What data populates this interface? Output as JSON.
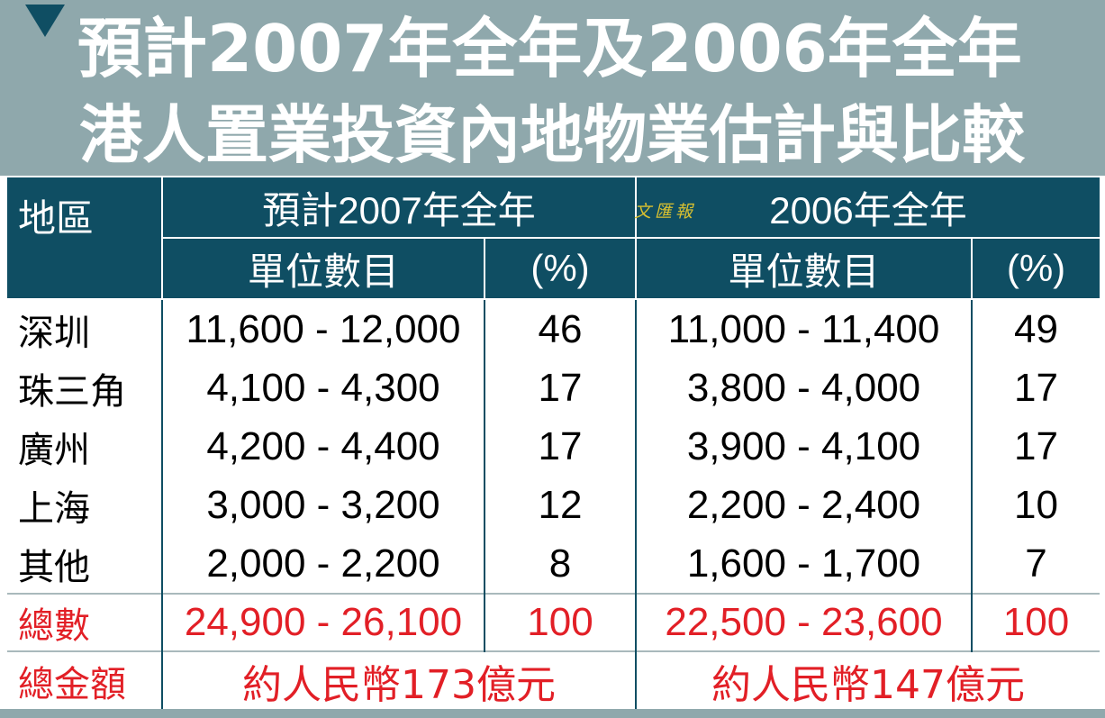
{
  "title": {
    "line1": "預計2007年全年及2006年全年",
    "line2": "港人置業投資內地物業估計與比較"
  },
  "logo_text": "文匯報",
  "colors": {
    "header_bg": "#0f4e63",
    "title_bg": "#8fa8ac",
    "total_text": "#e21f26"
  },
  "headers": {
    "region": "地區",
    "period_2007": "預計2007年全年",
    "period_2006": "2006年全年",
    "units": "單位數目",
    "percent": "(%)"
  },
  "rows": [
    {
      "region": "深圳",
      "units_2007": "11,600 - 12,000",
      "pct_2007": "46",
      "units_2006": "11,000 - 11,400",
      "pct_2006": "49"
    },
    {
      "region": "珠三角",
      "units_2007": "4,100 - 4,300",
      "pct_2007": "17",
      "units_2006": "3,800 - 4,000",
      "pct_2006": "17"
    },
    {
      "region": "廣州",
      "units_2007": "4,200 - 4,400",
      "pct_2007": "17",
      "units_2006": "3,900 - 4,100",
      "pct_2006": "17"
    },
    {
      "region": "上海",
      "units_2007": "3,000 - 3,200",
      "pct_2007": "12",
      "units_2006": "2,200 - 2,400",
      "pct_2006": "10"
    },
    {
      "region": "其他",
      "units_2007": "2,000 - 2,200",
      "pct_2007": "8",
      "units_2006": "1,600 - 1,700",
      "pct_2006": "7"
    }
  ],
  "total": {
    "label": "總數",
    "units_2007": "24,900 - 26,100",
    "pct_2007": "100",
    "units_2006": "22,500 - 23,600",
    "pct_2006": "100"
  },
  "amount": {
    "label": "總金額",
    "value_2007": "約人民幣173億元",
    "value_2006": "約人民幣147億元"
  }
}
